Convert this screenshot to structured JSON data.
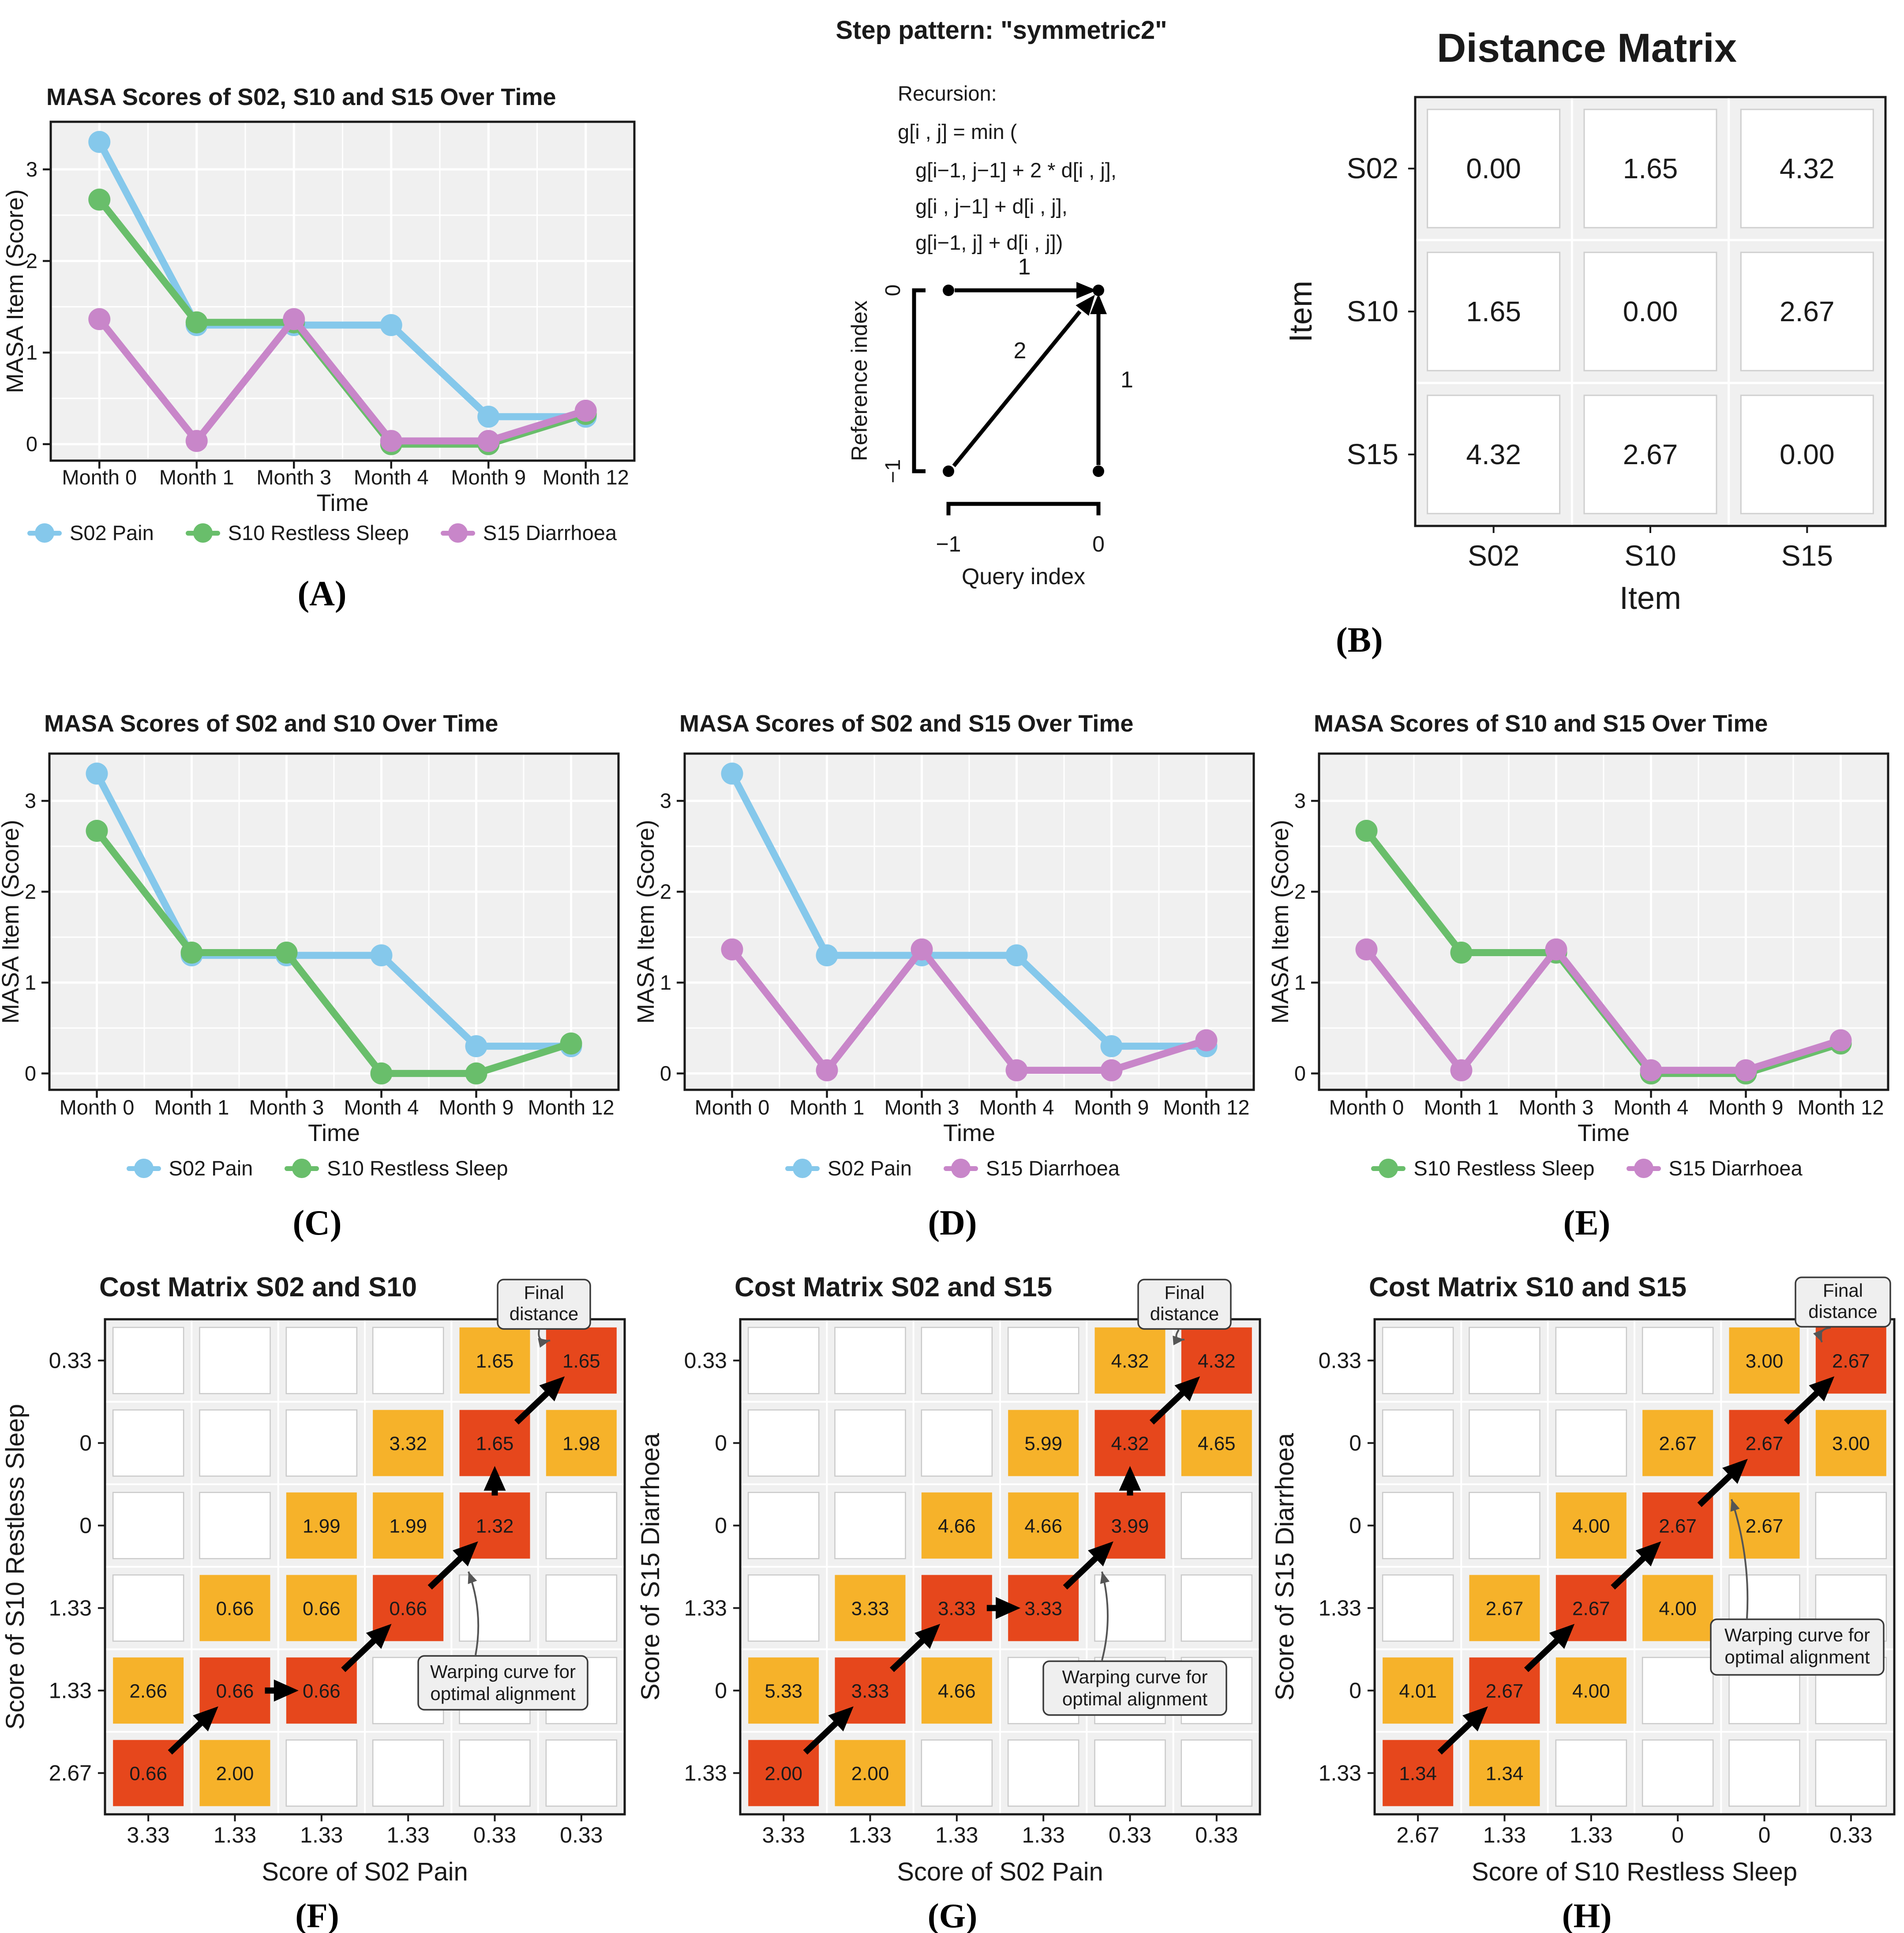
{
  "palette": {
    "s02_blue": "#85C8EB",
    "s10_green": "#69BE6B",
    "s15_purple": "#C886C9",
    "path_red": "#E6471C",
    "cost_orange": "#F6B22A",
    "panel_bg": "#F0F0F0",
    "grid_line": "#FFFFFF",
    "empty_cell_border": "#C9C9C9",
    "axis_text": "#1A1A1A",
    "cell_value_text": "#26160A",
    "annotation_bg": "#EFEFEF",
    "annotation_border": "#3A3A3A"
  },
  "step_pattern": {
    "title": "Step pattern: \"symmetric2\"",
    "recursion_lines": [
      "Recursion:",
      "g[i , j] = min (",
      "g[i−1, j−1] + 2 * d[i , j],",
      "g[i , j−1] + d[i , j],",
      "g[i−1, j] + d[i , j])"
    ],
    "ylabel": "Reference index",
    "xlabel": "Query index",
    "y_ticks": [
      "0",
      "−1"
    ],
    "x_ticks": [
      "−1",
      "0"
    ],
    "weights": {
      "horizontal": "1",
      "diagonal": "2",
      "vertical": "1"
    }
  },
  "chart_data": [
    {
      "id": "A",
      "type": "line",
      "title": "MASA Scores of S02, S10 and S15 Over Time",
      "xlabel": "Time",
      "ylabel": "MASA Item (Score)",
      "categories": [
        "Month 0",
        "Month 1",
        "Month 3",
        "Month 4",
        "Month 9",
        "Month 12"
      ],
      "yticks": [
        "0",
        "1",
        "2",
        "3"
      ],
      "ylim": [
        -0.2,
        3.6
      ],
      "grid": true,
      "legend_position": "bottom",
      "series": [
        {
          "name": "S02 Pain",
          "color": "s02_blue",
          "values": [
            3.33,
            1.33,
            1.33,
            1.33,
            0.33,
            0.33
          ]
        },
        {
          "name": "S10 Restless Sleep",
          "color": "s10_green",
          "values": [
            2.67,
            1.33,
            1.33,
            0,
            0,
            0.33
          ]
        },
        {
          "name": "S15 Diarrhoea",
          "color": "s15_purple",
          "values": [
            1.33,
            0,
            1.33,
            0,
            0,
            0.33
          ]
        }
      ],
      "panel_label": "(A)"
    },
    {
      "id": "B",
      "type": "distance_matrix",
      "title": "Distance Matrix",
      "xlabel": "Item",
      "ylabel": "Item",
      "row_labels": [
        "S02",
        "S10",
        "S15"
      ],
      "col_labels": [
        "S02",
        "S10",
        "S15"
      ],
      "values": [
        [
          "0.00",
          "1.65",
          "4.32"
        ],
        [
          "1.65",
          "0.00",
          "2.67"
        ],
        [
          "4.32",
          "2.67",
          "0.00"
        ]
      ],
      "panel_label": "(B)"
    },
    {
      "id": "C",
      "type": "line",
      "title": "MASA Scores of S02 and S10 Over Time",
      "xlabel": "Time",
      "ylabel": "MASA Item (Score)",
      "categories": [
        "Month 0",
        "Month 1",
        "Month 3",
        "Month 4",
        "Month 9",
        "Month 12"
      ],
      "yticks": [
        "0",
        "1",
        "2",
        "3"
      ],
      "ylim": [
        -0.2,
        3.6
      ],
      "grid": true,
      "legend_position": "bottom",
      "series": [
        {
          "name": "S02 Pain",
          "color": "s02_blue",
          "values": [
            3.33,
            1.33,
            1.33,
            1.33,
            0.33,
            0.33
          ]
        },
        {
          "name": "S10 Restless Sleep",
          "color": "s10_green",
          "values": [
            2.67,
            1.33,
            1.33,
            0,
            0,
            0.33
          ]
        }
      ],
      "panel_label": "(C)"
    },
    {
      "id": "D",
      "type": "line",
      "title": "MASA Scores of S02 and S15 Over Time",
      "xlabel": "Time",
      "ylabel": "MASA Item (Score)",
      "categories": [
        "Month 0",
        "Month 1",
        "Month 3",
        "Month 4",
        "Month 9",
        "Month 12"
      ],
      "yticks": [
        "0",
        "1",
        "2",
        "3"
      ],
      "ylim": [
        -0.2,
        3.6
      ],
      "grid": true,
      "legend_position": "bottom",
      "series": [
        {
          "name": "S02 Pain",
          "color": "s02_blue",
          "values": [
            3.33,
            1.33,
            1.33,
            1.33,
            0.33,
            0.33
          ]
        },
        {
          "name": "S15 Diarrhoea",
          "color": "s15_purple",
          "values": [
            1.33,
            0,
            1.33,
            0,
            0,
            0.33
          ]
        }
      ],
      "panel_label": "(D)"
    },
    {
      "id": "E",
      "type": "line",
      "title": "MASA Scores of S10 and S15 Over Time",
      "xlabel": "Time",
      "ylabel": "MASA Item (Score)",
      "categories": [
        "Month 0",
        "Month 1",
        "Month 3",
        "Month 4",
        "Month 9",
        "Month 12"
      ],
      "yticks": [
        "0",
        "1",
        "2",
        "3"
      ],
      "ylim": [
        -0.2,
        3.6
      ],
      "grid": true,
      "legend_position": "bottom",
      "series": [
        {
          "name": "S10 Restless Sleep",
          "color": "s10_green",
          "values": [
            2.67,
            1.33,
            1.33,
            0,
            0,
            0.33
          ]
        },
        {
          "name": "S15 Diarrhoea",
          "color": "s15_purple",
          "values": [
            1.33,
            0,
            1.33,
            0,
            0,
            0.33
          ]
        }
      ],
      "panel_label": "(E)"
    },
    {
      "id": "F",
      "type": "cost_matrix",
      "title": "Cost Matrix S02 and S10",
      "xlabel": "Score of S02 Pain",
      "ylabel": "Score of S10 Restless Sleep",
      "x_ticks": [
        "3.33",
        "1.33",
        "1.33",
        "1.33",
        "0.33",
        "0.33"
      ],
      "y_ticks": [
        "0.33",
        "0",
        "0",
        "1.33",
        "1.33",
        "2.67"
      ],
      "cells": [
        {
          "row": 1,
          "col": 5,
          "value": "1.65",
          "level": "orange"
        },
        {
          "row": 1,
          "col": 6,
          "value": "1.65",
          "level": "red"
        },
        {
          "row": 2,
          "col": 4,
          "value": "3.32",
          "level": "orange"
        },
        {
          "row": 2,
          "col": 5,
          "value": "1.65",
          "level": "red"
        },
        {
          "row": 2,
          "col": 6,
          "value": "1.98",
          "level": "orange"
        },
        {
          "row": 3,
          "col": 3,
          "value": "1.99",
          "level": "orange"
        },
        {
          "row": 3,
          "col": 4,
          "value": "1.99",
          "level": "orange"
        },
        {
          "row": 3,
          "col": 5,
          "value": "1.32",
          "level": "red"
        },
        {
          "row": 4,
          "col": 2,
          "value": "0.66",
          "level": "orange"
        },
        {
          "row": 4,
          "col": 3,
          "value": "0.66",
          "level": "orange"
        },
        {
          "row": 4,
          "col": 4,
          "value": "0.66",
          "level": "red"
        },
        {
          "row": 5,
          "col": 1,
          "value": "2.66",
          "level": "orange"
        },
        {
          "row": 5,
          "col": 2,
          "value": "0.66",
          "level": "red"
        },
        {
          "row": 5,
          "col": 3,
          "value": "0.66",
          "level": "red"
        },
        {
          "row": 6,
          "col": 1,
          "value": "0.66",
          "level": "red"
        },
        {
          "row": 6,
          "col": 2,
          "value": "2.00",
          "level": "orange"
        }
      ],
      "path": [
        [
          6,
          1
        ],
        [
          5,
          2
        ],
        [
          5,
          3
        ],
        [
          4,
          4
        ],
        [
          3,
          5
        ],
        [
          2,
          5
        ],
        [
          1,
          6
        ]
      ],
      "annotations": {
        "final": [
          "Final",
          "distance"
        ],
        "warping": [
          "Warping curve for",
          "optimal alignment"
        ]
      },
      "panel_label": "(F)"
    },
    {
      "id": "G",
      "type": "cost_matrix",
      "title": "Cost Matrix S02 and S15",
      "xlabel": "Score of S02 Pain",
      "ylabel": "Score of S15 Diarrhoea",
      "x_ticks": [
        "3.33",
        "1.33",
        "1.33",
        "1.33",
        "0.33",
        "0.33"
      ],
      "y_ticks": [
        "0.33",
        "0",
        "0",
        "1.33",
        "0",
        "1.33"
      ],
      "cells": [
        {
          "row": 1,
          "col": 5,
          "value": "4.32",
          "level": "orange"
        },
        {
          "row": 1,
          "col": 6,
          "value": "4.32",
          "level": "red"
        },
        {
          "row": 2,
          "col": 4,
          "value": "5.99",
          "level": "orange"
        },
        {
          "row": 2,
          "col": 5,
          "value": "4.32",
          "level": "red"
        },
        {
          "row": 2,
          "col": 6,
          "value": "4.65",
          "level": "orange"
        },
        {
          "row": 3,
          "col": 3,
          "value": "4.66",
          "level": "orange"
        },
        {
          "row": 3,
          "col": 4,
          "value": "4.66",
          "level": "orange"
        },
        {
          "row": 3,
          "col": 5,
          "value": "3.99",
          "level": "red"
        },
        {
          "row": 4,
          "col": 2,
          "value": "3.33",
          "level": "orange"
        },
        {
          "row": 4,
          "col": 3,
          "value": "3.33",
          "level": "red"
        },
        {
          "row": 4,
          "col": 4,
          "value": "3.33",
          "level": "red"
        },
        {
          "row": 5,
          "col": 1,
          "value": "5.33",
          "level": "orange"
        },
        {
          "row": 5,
          "col": 2,
          "value": "3.33",
          "level": "red"
        },
        {
          "row": 5,
          "col": 3,
          "value": "4.66",
          "level": "orange"
        },
        {
          "row": 6,
          "col": 1,
          "value": "2.00",
          "level": "red"
        },
        {
          "row": 6,
          "col": 2,
          "value": "2.00",
          "level": "orange"
        }
      ],
      "path": [
        [
          6,
          1
        ],
        [
          5,
          2
        ],
        [
          4,
          3
        ],
        [
          4,
          4
        ],
        [
          3,
          5
        ],
        [
          2,
          5
        ],
        [
          1,
          6
        ]
      ],
      "annotations": {
        "final": [
          "Final",
          "distance"
        ],
        "warping": [
          "Warping curve for",
          "optimal alignment"
        ]
      },
      "panel_label": "(G)"
    },
    {
      "id": "H",
      "type": "cost_matrix",
      "title": "Cost Matrix S10 and S15",
      "xlabel": "Score of S10 Restless Sleep",
      "ylabel": "Score of S15 Diarrhoea",
      "x_ticks": [
        "2.67",
        "1.33",
        "1.33",
        "0",
        "0",
        "0.33"
      ],
      "y_ticks": [
        "0.33",
        "0",
        "0",
        "1.33",
        "0",
        "1.33"
      ],
      "cells": [
        {
          "row": 1,
          "col": 5,
          "value": "3.00",
          "level": "orange"
        },
        {
          "row": 1,
          "col": 6,
          "value": "2.67",
          "level": "red"
        },
        {
          "row": 2,
          "col": 4,
          "value": "2.67",
          "level": "orange"
        },
        {
          "row": 2,
          "col": 5,
          "value": "2.67",
          "level": "red"
        },
        {
          "row": 2,
          "col": 6,
          "value": "3.00",
          "level": "orange"
        },
        {
          "row": 3,
          "col": 3,
          "value": "4.00",
          "level": "orange"
        },
        {
          "row": 3,
          "col": 4,
          "value": "2.67",
          "level": "red"
        },
        {
          "row": 3,
          "col": 5,
          "value": "2.67",
          "level": "orange"
        },
        {
          "row": 4,
          "col": 2,
          "value": "2.67",
          "level": "orange"
        },
        {
          "row": 4,
          "col": 3,
          "value": "2.67",
          "level": "red"
        },
        {
          "row": 4,
          "col": 4,
          "value": "4.00",
          "level": "orange"
        },
        {
          "row": 5,
          "col": 1,
          "value": "4.01",
          "level": "orange"
        },
        {
          "row": 5,
          "col": 2,
          "value": "2.67",
          "level": "red"
        },
        {
          "row": 5,
          "col": 3,
          "value": "4.00",
          "level": "orange"
        },
        {
          "row": 6,
          "col": 1,
          "value": "1.34",
          "level": "red"
        },
        {
          "row": 6,
          "col": 2,
          "value": "1.34",
          "level": "orange"
        }
      ],
      "path": [
        [
          6,
          1
        ],
        [
          5,
          2
        ],
        [
          4,
          3
        ],
        [
          3,
          4
        ],
        [
          2,
          5
        ],
        [
          1,
          6
        ]
      ],
      "annotations": {
        "final": [
          "Final",
          "distance"
        ],
        "warping": [
          "Warping curve for",
          "optimal alignment"
        ]
      },
      "panel_label": "(H)"
    }
  ]
}
